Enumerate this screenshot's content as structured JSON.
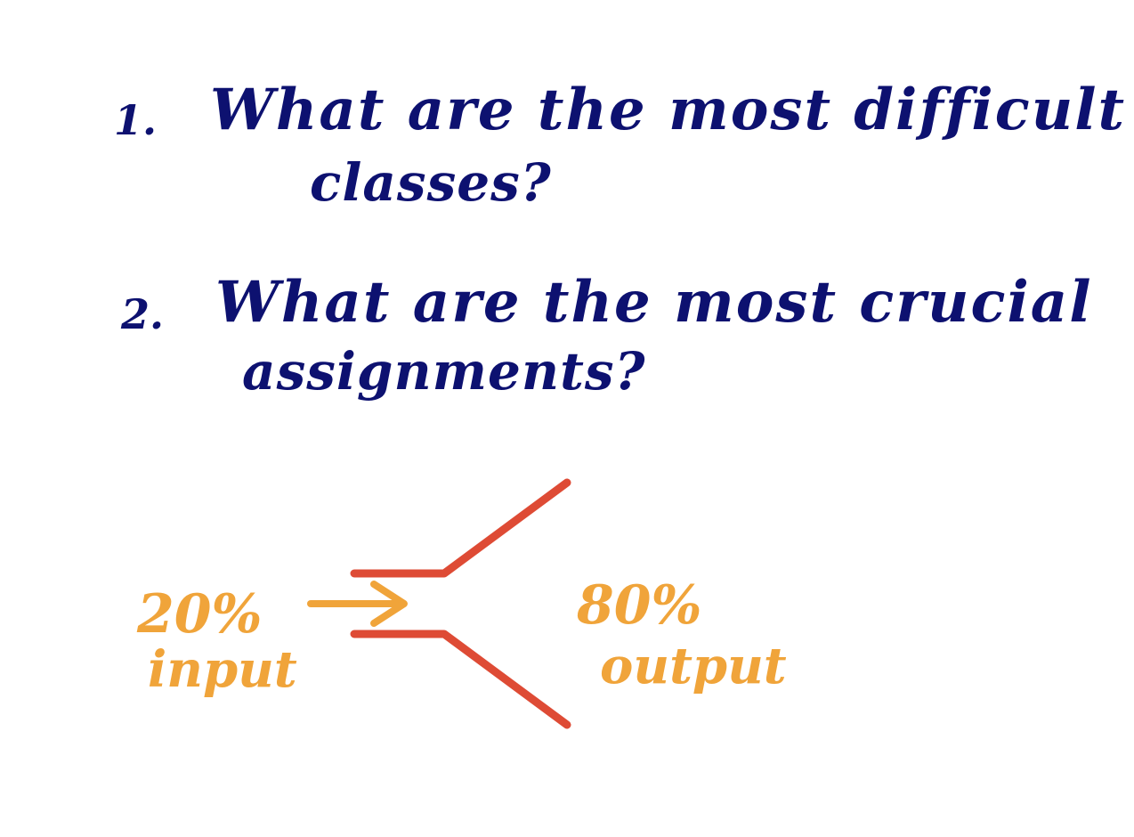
{
  "questions": [
    {
      "number": "1.",
      "line1": "What are the most difficult",
      "line2": "classes?"
    },
    {
      "number": "2.",
      "line1": "What are the most crucial",
      "line2": "assignments?"
    }
  ],
  "pareto": {
    "input_percent": "20%",
    "input_label": "input",
    "output_percent": "80%",
    "output_label": "output"
  },
  "colors": {
    "question_ink": "#0d1170",
    "label_ink": "#f0a43a",
    "funnel_ink": "#de4b35",
    "background": "#ffffff"
  }
}
